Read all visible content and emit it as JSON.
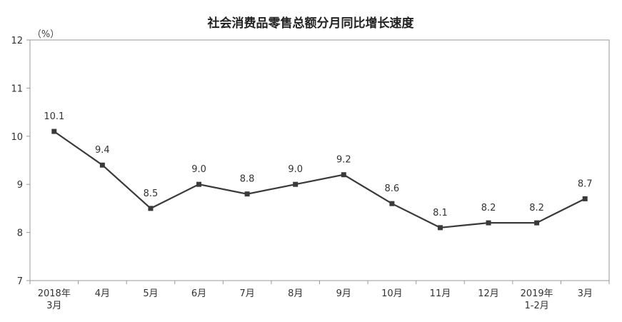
{
  "chart_data": {
    "type": "line",
    "title": "社会消费品零售总额分月同比增长速度",
    "unit_label": "（%）",
    "categories": [
      [
        "2018年",
        "3月"
      ],
      [
        "4月"
      ],
      [
        "5月"
      ],
      [
        "6月"
      ],
      [
        "7月"
      ],
      [
        "8月"
      ],
      [
        "9月"
      ],
      [
        "10月"
      ],
      [
        "11月"
      ],
      [
        "12月"
      ],
      [
        "2019年",
        "1-2月"
      ],
      [
        "3月"
      ]
    ],
    "series": [
      {
        "values": [
          10.1,
          9.4,
          8.5,
          9.0,
          8.8,
          9.0,
          9.2,
          8.6,
          8.1,
          8.2,
          8.2,
          8.7
        ],
        "labels": [
          "10.1",
          "9.4",
          "8.5",
          "9.0",
          "8.8",
          "9.0",
          "9.2",
          "8.6",
          "8.1",
          "8.2",
          "8.2",
          "8.7"
        ]
      }
    ],
    "ylim": [
      7,
      12
    ],
    "yticks": [
      7,
      8,
      9,
      10,
      11,
      12
    ],
    "grid": false,
    "line_color": "#3a3a3a",
    "marker": "square"
  }
}
